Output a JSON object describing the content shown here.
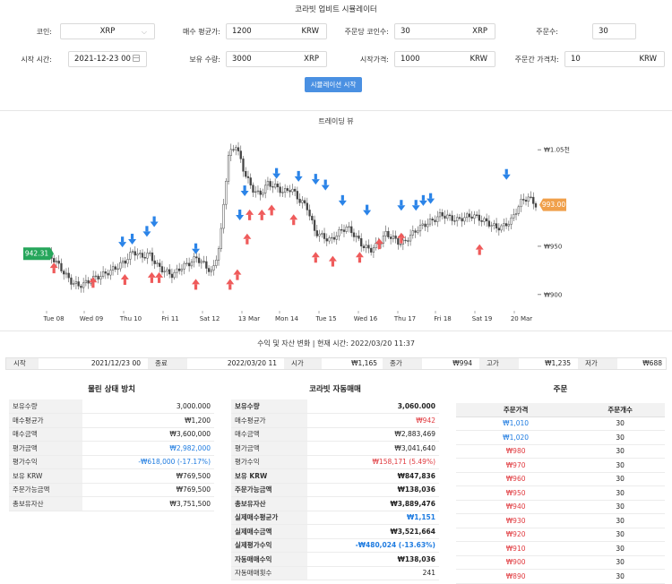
{
  "title": "코라빗 업비트 시뮬레이터",
  "form": {
    "coin_label": "코인:",
    "coin_value": "XRP",
    "avg_price_label": "매수 평균가:",
    "avg_price_value": "1200",
    "avg_price_unit": "KRW",
    "coins_per_order_label": "주문당 코인수:",
    "coins_per_order_value": "30",
    "coins_per_order_unit": "XRP",
    "order_count_label": "주문수:",
    "order_count_value": "30",
    "start_time_label": "시작 시간:",
    "start_time_value": "2021-12-23 00",
    "holding_label": "보유 수량:",
    "holding_value": "3000",
    "holding_unit": "XRP",
    "start_price_label": "시작가격:",
    "start_price_value": "1000",
    "start_price_unit": "KRW",
    "order_gap_label": "주문간 가격차:",
    "order_gap_value": "10",
    "order_gap_unit": "KRW",
    "run_button": "시뮬레이션 시작"
  },
  "chart_section_title": "트레이딩 뷰",
  "chart_data": {
    "type": "candlestick",
    "x_ticks": [
      "Tue 08",
      "Wed 09",
      "Thu 10",
      "Fri 11",
      "Sat 12",
      "13 Mar",
      "Mon 14",
      "Tue 15",
      "Wed 16",
      "Thu 17",
      "Fri 18",
      "Sat 19",
      "20 Mar"
    ],
    "y_ticks": [
      "₩1.05천",
      "₩950",
      "₩900"
    ],
    "ylim": [
      885,
      1065
    ],
    "start_label": "942.31",
    "end_label": "993.00",
    "start_value": 942.31,
    "end_value": 993.0,
    "close_path": [
      942,
      936,
      925,
      914,
      909,
      912,
      917,
      920,
      924,
      929,
      935,
      945,
      939,
      942,
      930,
      924,
      920,
      928,
      932,
      938,
      931,
      922,
      955,
      1043,
      1055,
      1028,
      1010,
      1003,
      1015,
      1012,
      1006,
      1010,
      998,
      991,
      965,
      960,
      956,
      964,
      970,
      962,
      951,
      946,
      952,
      963,
      958,
      952,
      960,
      968,
      973,
      977,
      983,
      980,
      977,
      980,
      982,
      978,
      974,
      969,
      971,
      978,
      995,
      1001,
      993
    ],
    "sell_signals": [
      [
        0.015,
        935
      ],
      [
        0.095,
        920
      ],
      [
        0.16,
        923
      ],
      [
        0.215,
        925
      ],
      [
        0.23,
        925
      ],
      [
        0.305,
        918
      ],
      [
        0.375,
        918
      ],
      [
        0.39,
        928
      ],
      [
        0.41,
        965
      ],
      [
        0.415,
        990
      ],
      [
        0.44,
        990
      ],
      [
        0.46,
        995
      ],
      [
        0.505,
        985
      ],
      [
        0.55,
        946
      ],
      [
        0.585,
        942
      ],
      [
        0.64,
        946
      ],
      [
        0.68,
        960
      ],
      [
        0.725,
        966
      ],
      [
        0.885,
        954
      ]
    ],
    "buy_signals": [
      [
        0.155,
        947
      ],
      [
        0.175,
        950
      ],
      [
        0.205,
        958
      ],
      [
        0.22,
        968
      ],
      [
        0.305,
        940
      ],
      [
        0.395,
        975
      ],
      [
        0.405,
        1000
      ],
      [
        0.47,
        1018
      ],
      [
        0.515,
        1015
      ],
      [
        0.55,
        1012
      ],
      [
        0.57,
        1006
      ],
      [
        0.605,
        990
      ],
      [
        0.655,
        980
      ],
      [
        0.725,
        985
      ],
      [
        0.755,
        985
      ],
      [
        0.77,
        990
      ],
      [
        0.785,
        992
      ],
      [
        0.94,
        1017
      ]
    ]
  },
  "summary": {
    "heading": "수익 및 자산 변화 | 현재 시간: 2022/03/20 11:37",
    "start_label": "시작",
    "start_value": "2021/12/23 00",
    "end_label": "종료",
    "end_value": "2022/03/20 11",
    "open_label": "시가",
    "open_value": "₩1,165",
    "close_label": "종가",
    "close_value": "₩994",
    "high_label": "고가",
    "high_value": "₩1,235",
    "low_label": "저가",
    "low_value": "₩688"
  },
  "hold": {
    "title": "물린 상태 방치",
    "rows": [
      {
        "k": "보유수량",
        "v": "3,000.000",
        "c": ""
      },
      {
        "k": "매수평균가",
        "v": "₩1,200",
        "c": ""
      },
      {
        "k": "매수금액",
        "v": "₩3,600,000",
        "c": ""
      },
      {
        "k": "평가금액",
        "v": "₩2,982,000",
        "c": "blue"
      },
      {
        "k": "평가수익",
        "v": "-₩618,000 (-17.17%)",
        "c": "blue"
      },
      {
        "k": "보유 KRW",
        "v": "₩769,500",
        "c": ""
      },
      {
        "k": "주문가능금액",
        "v": "₩769,500",
        "c": ""
      },
      {
        "k": "총보유자산",
        "v": "₩3,751,500",
        "c": ""
      }
    ]
  },
  "auto": {
    "title": "코라빗 자동매매",
    "rows": [
      {
        "k": "보유수량",
        "v": "3,060.000",
        "c": "",
        "b": true
      },
      {
        "k": "매수평균가",
        "v": "₩942",
        "c": "red",
        "b": false
      },
      {
        "k": "매수금액",
        "v": "₩2,883,469",
        "c": "",
        "b": false
      },
      {
        "k": "평가금액",
        "v": "₩3,041,640",
        "c": "",
        "b": false
      },
      {
        "k": "평가수익",
        "v": "₩158,171 (5.49%)",
        "c": "red",
        "b": false
      },
      {
        "k": "보유 KRW",
        "v": "₩847,836",
        "c": "",
        "b": true
      },
      {
        "k": "주문가능금액",
        "v": "₩138,036",
        "c": "",
        "b": true
      },
      {
        "k": "총보유자산",
        "v": "₩3,889,476",
        "c": "",
        "b": true
      },
      {
        "k": "실제매수평균가",
        "v": "₩1,151",
        "c": "blue",
        "b": true
      },
      {
        "k": "실제매수금액",
        "v": "₩3,521,664",
        "c": "",
        "b": true
      },
      {
        "k": "실제평가수익",
        "v": "-₩480,024 (-13.63%)",
        "c": "blue",
        "b": true
      },
      {
        "k": "자동매매수익",
        "v": "₩138,036",
        "c": "",
        "b": true
      },
      {
        "k": "자동매매횟수",
        "v": "241",
        "c": "",
        "b": false
      }
    ]
  },
  "orders": {
    "title": "주문",
    "col_price": "주문가격",
    "col_qty": "주문개수",
    "rows": [
      {
        "price": "₩1,010",
        "qty": "30",
        "c": "blue"
      },
      {
        "price": "₩1,020",
        "qty": "30",
        "c": "blue"
      },
      {
        "price": "₩980",
        "qty": "30",
        "c": "red"
      },
      {
        "price": "₩970",
        "qty": "30",
        "c": "red"
      },
      {
        "price": "₩960",
        "qty": "30",
        "c": "red"
      },
      {
        "price": "₩950",
        "qty": "30",
        "c": "red"
      },
      {
        "price": "₩940",
        "qty": "30",
        "c": "red"
      },
      {
        "price": "₩930",
        "qty": "30",
        "c": "red"
      },
      {
        "price": "₩920",
        "qty": "30",
        "c": "red"
      },
      {
        "price": "₩910",
        "qty": "30",
        "c": "red"
      },
      {
        "price": "₩900",
        "qty": "30",
        "c": "red"
      },
      {
        "price": "₩890",
        "qty": "30",
        "c": "red"
      }
    ]
  },
  "colors": {
    "blue": "#1e7be0",
    "red": "#e0393e",
    "green_label": "#26a65b",
    "orange_label": "#f0a04b",
    "sell_arrow": "#2b84e8",
    "buy_arrow": "#ef5b5b"
  }
}
